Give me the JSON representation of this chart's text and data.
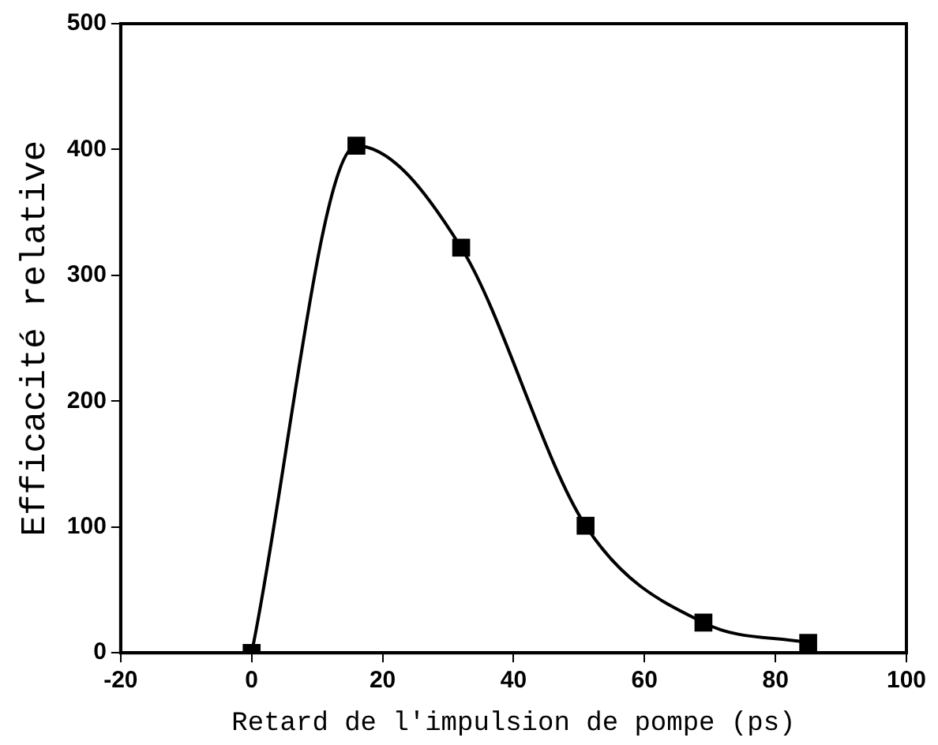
{
  "chart_data": {
    "type": "line",
    "xlabel": "Retard de l'impulsion de pompe (ps)",
    "ylabel": "Efficacité relative",
    "x": [
      0,
      16,
      32,
      51,
      69,
      85
    ],
    "series": [
      {
        "color": "#000000",
        "values": [
          0,
          403,
          322,
          101,
          24,
          8
        ]
      }
    ],
    "xlim": [
      -20,
      100
    ],
    "xticks": [
      -20,
      0,
      20,
      40,
      60,
      80,
      100
    ],
    "ylim": [
      0,
      500
    ],
    "yticks": [
      0,
      100,
      200,
      300,
      400,
      500
    ],
    "marker": "square",
    "line_style": "solid",
    "grid": false,
    "legend": false
  }
}
